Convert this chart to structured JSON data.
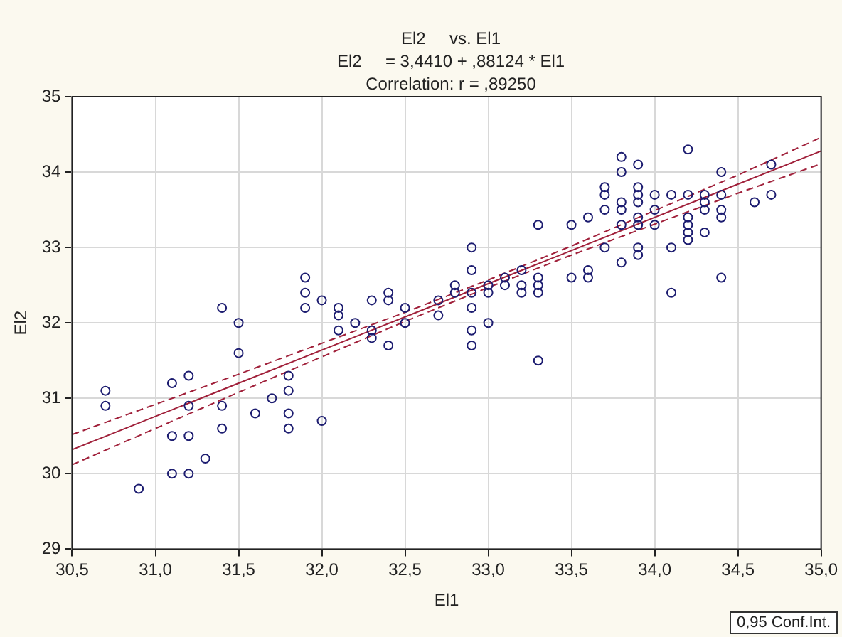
{
  "chart_data": {
    "type": "scatter",
    "title": "El2     vs. El1",
    "subtitle": "El2     = 3,4410 + ,88124 * El1",
    "xlabel": "El1",
    "ylabel": "El2",
    "annotations": [
      "Correlation: r = ,89250",
      "0,95 Conf.Int."
    ],
    "xlim": [
      30.5,
      35.0
    ],
    "ylim": [
      29,
      35
    ],
    "xticks": [
      {
        "value": 30.5,
        "label": "30,5"
      },
      {
        "value": 31.0,
        "label": "31,0"
      },
      {
        "value": 31.5,
        "label": "31,5"
      },
      {
        "value": 32.0,
        "label": "32,0"
      },
      {
        "value": 32.5,
        "label": "32,5"
      },
      {
        "value": 33.0,
        "label": "33,0"
      },
      {
        "value": 33.5,
        "label": "33,5"
      },
      {
        "value": 34.0,
        "label": "34,0"
      },
      {
        "value": 34.5,
        "label": "34,5"
      },
      {
        "value": 35.0,
        "label": "35,0"
      }
    ],
    "yticks": [
      29,
      30,
      31,
      32,
      33,
      34,
      35
    ],
    "grid": true,
    "legend": false,
    "series": [
      {
        "color": "#1c1c70",
        "marker": "circle",
        "x": [
          30.7,
          30.7,
          30.9,
          31.1,
          31.1,
          31.1,
          31.2,
          31.2,
          31.2,
          31.2,
          31.3,
          31.4,
          31.4,
          31.4,
          31.5,
          31.5,
          31.6,
          31.7,
          31.8,
          31.8,
          31.8,
          31.8,
          31.9,
          31.9,
          31.9,
          32.0,
          32.0,
          32.1,
          32.1,
          32.1,
          32.2,
          32.3,
          32.3,
          32.3,
          32.4,
          32.4,
          32.4,
          32.5,
          32.5,
          32.7,
          32.7,
          32.8,
          32.8,
          32.9,
          32.9,
          32.9,
          32.9,
          32.9,
          32.9,
          33.0,
          33.0,
          33.0,
          33.1,
          33.1,
          33.2,
          33.2,
          33.2,
          33.3,
          33.3,
          33.3,
          33.3,
          33.3,
          33.5,
          33.5,
          33.6,
          33.6,
          33.6,
          33.7,
          33.7,
          33.7,
          33.7,
          33.8,
          33.8,
          33.8,
          33.8,
          33.8,
          33.8,
          33.9,
          33.9,
          33.9,
          33.9,
          33.9,
          33.9,
          33.9,
          33.9,
          34.0,
          34.0,
          34.0,
          34.1,
          34.1,
          34.1,
          34.2,
          34.2,
          34.2,
          34.2,
          34.2,
          34.2,
          34.3,
          34.3,
          34.3,
          34.3,
          34.4,
          34.4,
          34.4,
          34.4,
          34.4,
          34.6,
          34.7,
          34.7
        ],
        "values": [
          31.1,
          30.9,
          29.8,
          31.2,
          30.5,
          30.0,
          31.3,
          30.9,
          30.5,
          30.0,
          30.2,
          32.2,
          30.9,
          30.6,
          32.0,
          31.6,
          30.8,
          31.0,
          31.3,
          31.1,
          30.8,
          30.6,
          32.6,
          32.4,
          32.2,
          32.3,
          30.7,
          32.2,
          32.1,
          31.9,
          32.0,
          32.3,
          31.9,
          31.8,
          32.4,
          32.3,
          31.7,
          32.2,
          32.0,
          32.3,
          32.1,
          32.5,
          32.4,
          33.0,
          32.7,
          32.4,
          32.2,
          31.9,
          31.7,
          32.5,
          32.4,
          32.0,
          32.6,
          32.5,
          32.7,
          32.5,
          32.4,
          33.3,
          32.6,
          32.5,
          32.4,
          31.5,
          33.3,
          32.6,
          33.4,
          32.7,
          32.6,
          33.8,
          33.7,
          33.5,
          33.0,
          34.2,
          34.0,
          33.6,
          33.5,
          33.3,
          32.8,
          34.1,
          33.8,
          33.7,
          33.6,
          33.4,
          33.3,
          33.0,
          32.9,
          33.7,
          33.5,
          33.3,
          33.7,
          33.0,
          32.4,
          34.3,
          33.7,
          33.4,
          33.3,
          33.2,
          33.1,
          33.7,
          33.6,
          33.5,
          33.2,
          34.0,
          33.7,
          33.5,
          33.4,
          32.6,
          33.6,
          34.1,
          33.7
        ]
      },
      {
        "type": "line",
        "color": "#a0203a",
        "line_style": "solid",
        "marker": "none",
        "x": [
          30.5,
          31.5,
          32.5,
          33.0,
          33.5,
          34.5,
          35.0
        ],
        "values": [
          30.32,
          31.2,
          32.08,
          32.52,
          32.96,
          33.84,
          34.28
        ]
      },
      {
        "type": "line",
        "color": "#a0203a",
        "line_style": "dashed",
        "marker": "none",
        "x": [
          30.5,
          31.5,
          32.5,
          33.0,
          33.5,
          34.5,
          35.0
        ],
        "values": [
          30.12,
          31.08,
          32.02,
          32.47,
          32.9,
          33.72,
          34.11
        ]
      },
      {
        "type": "line",
        "color": "#a0203a",
        "line_style": "dashed",
        "marker": "none",
        "x": [
          30.5,
          31.5,
          32.5,
          33.0,
          33.5,
          34.5,
          35.0
        ],
        "values": [
          30.52,
          31.32,
          32.14,
          32.57,
          33.02,
          33.96,
          34.46
        ]
      }
    ]
  }
}
